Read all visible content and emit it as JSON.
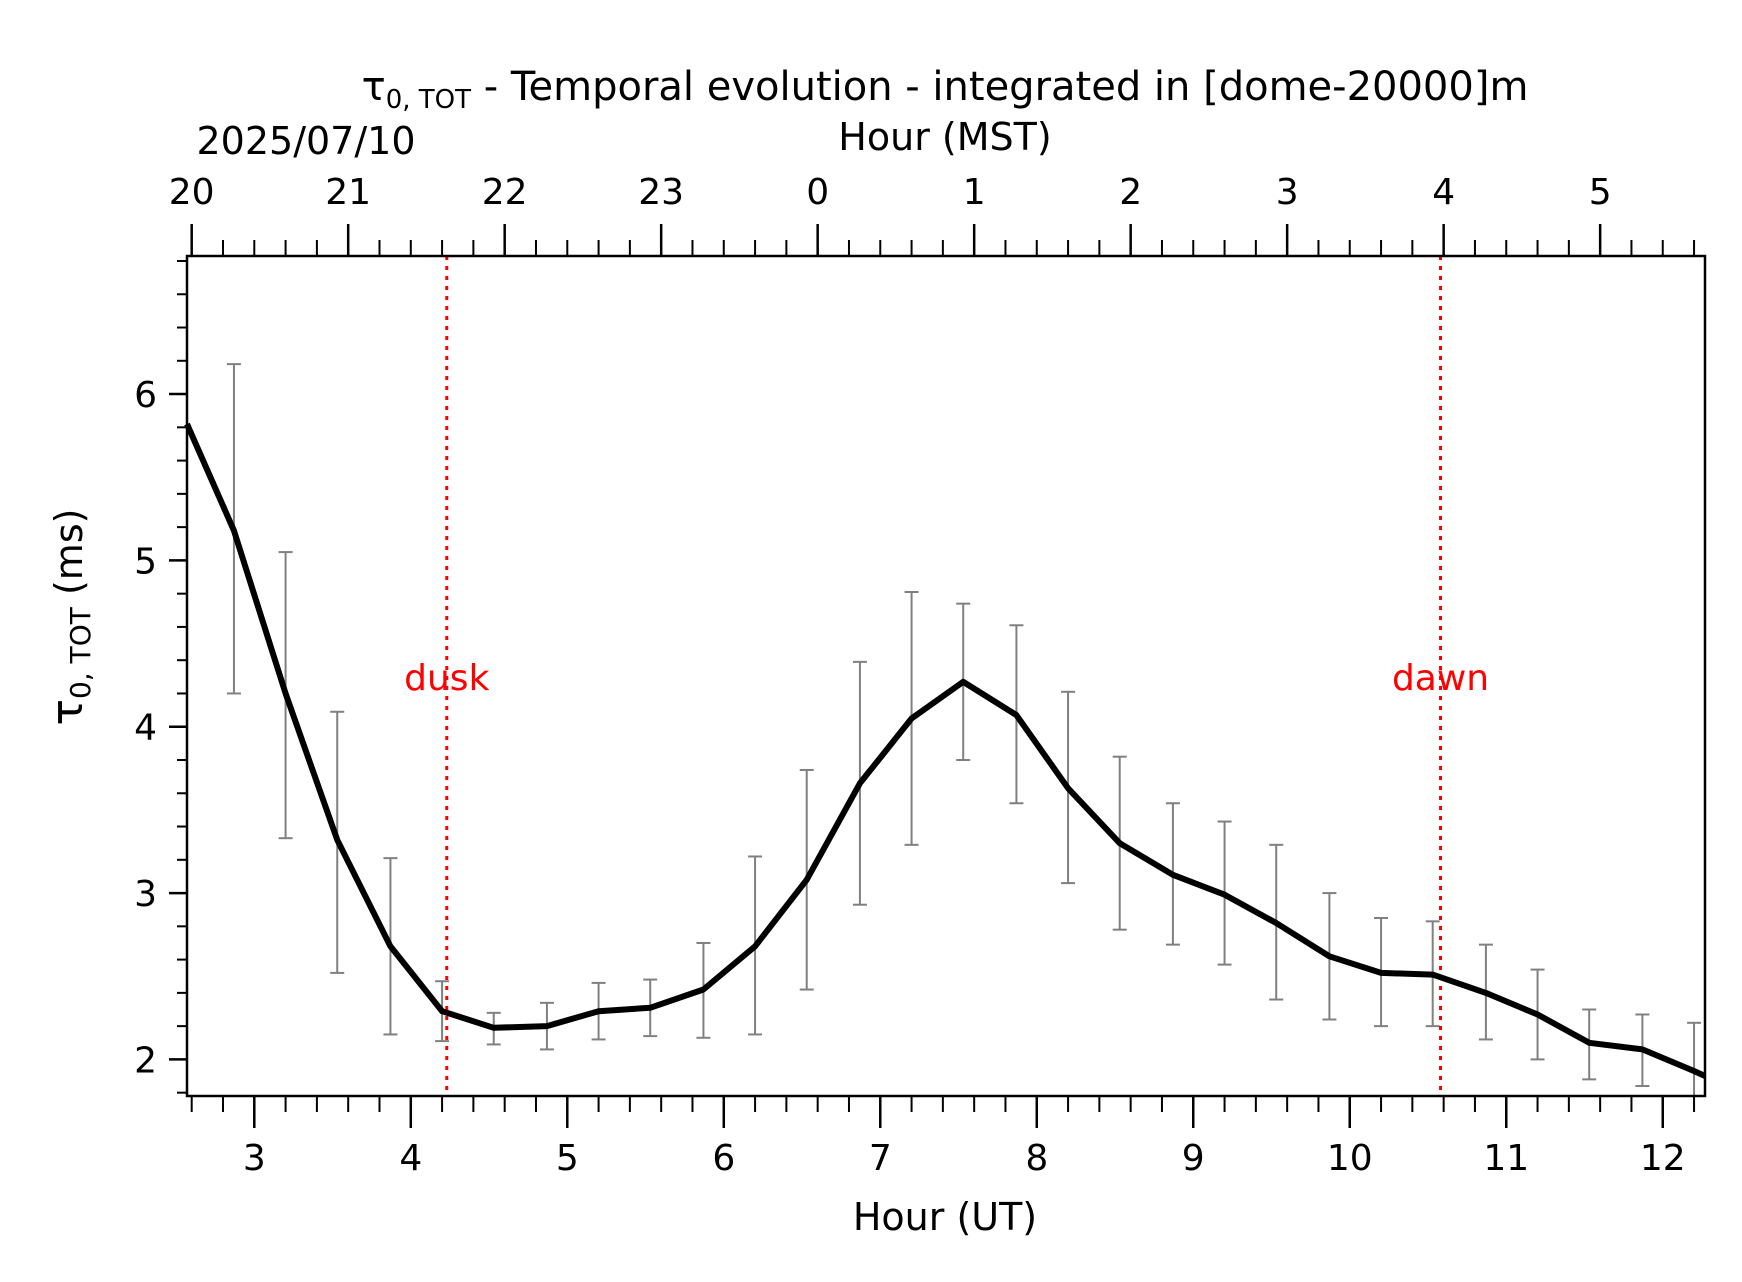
{
  "chart_data": {
    "type": "line",
    "title_symbol": "τ",
    "title_subscript": "0, TOT",
    "title_text": " - Temporal evolution - integrated in [dome-20000]m",
    "date_label": "2025/07/10",
    "xlabel": "Hour (UT)",
    "x2label": "Hour (MST)",
    "ylabel_symbol": "τ",
    "ylabel_subscript": "0, TOT",
    "ylabel_unit": " (ms)",
    "xlim": [
      2.57,
      12.27
    ],
    "ylim": [
      1.78,
      6.83
    ],
    "x_ticks": [
      3,
      4,
      5,
      6,
      7,
      8,
      9,
      10,
      11,
      12
    ],
    "x_tick_labels": [
      "3",
      "4",
      "5",
      "6",
      "7",
      "8",
      "9",
      "10",
      "11",
      "12"
    ],
    "x2_ticks": [
      2.6,
      3.6,
      4.6,
      5.6,
      6.6,
      7.6,
      8.6,
      9.6,
      10.6,
      11.6
    ],
    "x2_tick_labels": [
      "20",
      "21",
      "22",
      "23",
      "0",
      "1",
      "2",
      "3",
      "4",
      "5"
    ],
    "y_ticks": [
      2,
      3,
      4,
      5,
      6
    ],
    "y_tick_labels": [
      "2",
      "3",
      "4",
      "5",
      "6"
    ],
    "grid": false,
    "legend": "none",
    "series": [
      {
        "color": "#000000",
        "points": [
          {
            "x": 2.57,
            "y": 5.82
          },
          {
            "x": 2.87,
            "y": 5.18,
            "lo": 4.2,
            "hi": 6.18
          },
          {
            "x": 3.2,
            "y": 4.2,
            "lo": 3.33,
            "hi": 5.05
          },
          {
            "x": 3.53,
            "y": 3.32,
            "lo": 2.52,
            "hi": 4.09
          },
          {
            "x": 3.87,
            "y": 2.68,
            "lo": 2.15,
            "hi": 3.21
          },
          {
            "x": 4.2,
            "y": 2.29,
            "lo": 2.11,
            "hi": 2.47
          },
          {
            "x": 4.53,
            "y": 2.19,
            "lo": 2.09,
            "hi": 2.28
          },
          {
            "x": 4.87,
            "y": 2.2,
            "lo": 2.06,
            "hi": 2.34
          },
          {
            "x": 5.2,
            "y": 2.29,
            "lo": 2.12,
            "hi": 2.46
          },
          {
            "x": 5.53,
            "y": 2.31,
            "lo": 2.14,
            "hi": 2.48
          },
          {
            "x": 5.87,
            "y": 2.42,
            "lo": 2.13,
            "hi": 2.7
          },
          {
            "x": 6.2,
            "y": 2.68,
            "lo": 2.15,
            "hi": 3.22
          },
          {
            "x": 6.53,
            "y": 3.08,
            "lo": 2.42,
            "hi": 3.74
          },
          {
            "x": 6.87,
            "y": 3.66,
            "lo": 2.93,
            "hi": 4.39
          },
          {
            "x": 7.2,
            "y": 4.05,
            "lo": 3.29,
            "hi": 4.81
          },
          {
            "x": 7.53,
            "y": 4.27,
            "lo": 3.8,
            "hi": 4.74
          },
          {
            "x": 7.87,
            "y": 4.07,
            "lo": 3.54,
            "hi": 4.61
          },
          {
            "x": 8.2,
            "y": 3.63,
            "lo": 3.06,
            "hi": 4.21
          },
          {
            "x": 8.53,
            "y": 3.3,
            "lo": 2.78,
            "hi": 3.82
          },
          {
            "x": 8.87,
            "y": 3.11,
            "lo": 2.69,
            "hi": 3.54
          },
          {
            "x": 9.2,
            "y": 2.99,
            "lo": 2.57,
            "hi": 3.43
          },
          {
            "x": 9.53,
            "y": 2.82,
            "lo": 2.36,
            "hi": 3.29
          },
          {
            "x": 9.87,
            "y": 2.62,
            "lo": 2.24,
            "hi": 3.0
          },
          {
            "x": 10.2,
            "y": 2.52,
            "lo": 2.2,
            "hi": 2.85
          },
          {
            "x": 10.53,
            "y": 2.51,
            "lo": 2.2,
            "hi": 2.83
          },
          {
            "x": 10.87,
            "y": 2.4,
            "lo": 2.12,
            "hi": 2.69
          },
          {
            "x": 11.2,
            "y": 2.27,
            "lo": 2.0,
            "hi": 2.54
          },
          {
            "x": 11.53,
            "y": 2.1,
            "lo": 1.88,
            "hi": 2.3
          },
          {
            "x": 11.87,
            "y": 2.06,
            "lo": 1.84,
            "hi": 2.27
          },
          {
            "x": 12.2,
            "y": 1.93,
            "lo": 1.78,
            "hi": 2.22
          },
          {
            "x": 12.27,
            "y": 1.9
          }
        ]
      }
    ],
    "errorbar_color": "#808080",
    "annotations": [
      {
        "label": "dusk",
        "x": 4.23,
        "label_y": 4.3,
        "color": "#ff0000"
      },
      {
        "label": "dawn",
        "x": 10.58,
        "label_y": 4.3,
        "color": "#ff0000"
      }
    ]
  }
}
